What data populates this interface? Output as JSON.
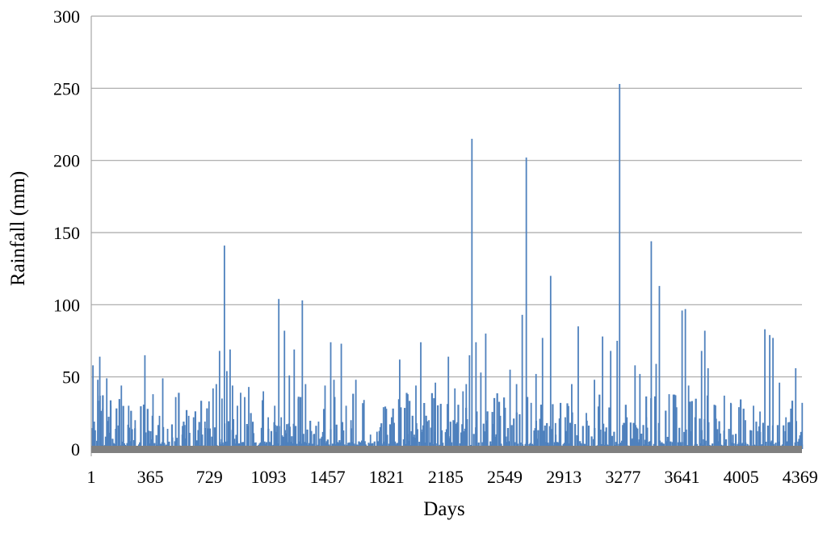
{
  "chart_data": {
    "type": "bar",
    "title": "",
    "xlabel": "Days",
    "ylabel": "Rainfall  (mm)",
    "xlim": [
      1,
      4380
    ],
    "ylim": [
      0,
      300
    ],
    "yticks": [
      0,
      50,
      100,
      150,
      200,
      250,
      300
    ],
    "xticks": [
      1,
      365,
      729,
      1093,
      1457,
      1821,
      2185,
      2549,
      2913,
      3277,
      3641,
      4005,
      4369
    ],
    "grid": true,
    "legend": "none",
    "bar_color": "#4f81bd",
    "baseline_color": "#808080",
    "grid_color": "#a6a6a6",
    "series": [
      {
        "values_note_free": true,
        "points": [
          [
            10,
            58
          ],
          [
            18,
            19
          ],
          [
            40,
            48
          ],
          [
            52,
            64
          ],
          [
            70,
            28
          ],
          [
            95,
            49
          ],
          [
            120,
            30
          ],
          [
            150,
            14
          ],
          [
            185,
            44
          ],
          [
            230,
            30
          ],
          [
            270,
            20
          ],
          [
            305,
            26
          ],
          [
            330,
            65
          ],
          [
            350,
            12
          ],
          [
            380,
            38
          ],
          [
            420,
            23
          ],
          [
            440,
            49
          ],
          [
            470,
            14
          ],
          [
            500,
            8
          ],
          [
            520,
            36
          ],
          [
            560,
            10
          ],
          [
            600,
            23
          ],
          [
            630,
            22
          ],
          [
            650,
            6
          ],
          [
            700,
            19
          ],
          [
            725,
            33
          ],
          [
            750,
            42
          ],
          [
            770,
            45
          ],
          [
            790,
            68
          ],
          [
            805,
            35
          ],
          [
            820,
            141
          ],
          [
            835,
            54
          ],
          [
            855,
            69
          ],
          [
            870,
            44
          ],
          [
            900,
            30
          ],
          [
            920,
            39
          ],
          [
            945,
            36
          ],
          [
            970,
            43
          ],
          [
            1000,
            11
          ],
          [
            1060,
            40
          ],
          [
            1090,
            22
          ],
          [
            1130,
            30
          ],
          [
            1155,
            104
          ],
          [
            1170,
            22
          ],
          [
            1190,
            82
          ],
          [
            1220,
            51
          ],
          [
            1250,
            69
          ],
          [
            1275,
            35
          ],
          [
            1300,
            103
          ],
          [
            1320,
            45
          ],
          [
            1370,
            10
          ],
          [
            1400,
            19
          ],
          [
            1440,
            44
          ],
          [
            1475,
            74
          ],
          [
            1495,
            48
          ],
          [
            1540,
            73
          ],
          [
            1570,
            30
          ],
          [
            1600,
            20
          ],
          [
            1630,
            48
          ],
          [
            1680,
            34
          ],
          [
            1720,
            10
          ],
          [
            1760,
            12
          ],
          [
            1800,
            29
          ],
          [
            1850,
            22
          ],
          [
            1900,
            62
          ],
          [
            1950,
            38
          ],
          [
            1990,
            10
          ],
          [
            2000,
            44
          ],
          [
            2030,
            74
          ],
          [
            2080,
            20
          ],
          [
            2120,
            46
          ],
          [
            2160,
            13
          ],
          [
            2200,
            64
          ],
          [
            2240,
            42
          ],
          [
            2290,
            40
          ],
          [
            2310,
            45
          ],
          [
            2330,
            65
          ],
          [
            2345,
            215
          ],
          [
            2370,
            74
          ],
          [
            2400,
            53
          ],
          [
            2430,
            80
          ],
          [
            2470,
            10
          ],
          [
            2520,
            23
          ],
          [
            2580,
            55
          ],
          [
            2620,
            45
          ],
          [
            2655,
            93
          ],
          [
            2680,
            202
          ],
          [
            2710,
            32
          ],
          [
            2740,
            52
          ],
          [
            2780,
            77
          ],
          [
            2830,
            120
          ],
          [
            2860,
            18
          ],
          [
            2920,
            22
          ],
          [
            2960,
            45
          ],
          [
            3000,
            85
          ],
          [
            3050,
            25
          ],
          [
            3100,
            48
          ],
          [
            3150,
            78
          ],
          [
            3200,
            68
          ],
          [
            3240,
            75
          ],
          [
            3255,
            253
          ],
          [
            3300,
            22
          ],
          [
            3350,
            58
          ],
          [
            3380,
            52
          ],
          [
            3420,
            22
          ],
          [
            3450,
            144
          ],
          [
            3480,
            59
          ],
          [
            3500,
            113
          ],
          [
            3560,
            38
          ],
          [
            3600,
            20
          ],
          [
            3640,
            96
          ],
          [
            3660,
            97
          ],
          [
            3680,
            44
          ],
          [
            3720,
            22
          ],
          [
            3760,
            68
          ],
          [
            3780,
            82
          ],
          [
            3800,
            56
          ],
          [
            3850,
            21
          ],
          [
            3900,
            37
          ],
          [
            3940,
            32
          ],
          [
            3990,
            29
          ],
          [
            4030,
            20
          ],
          [
            4080,
            30
          ],
          [
            4120,
            26
          ],
          [
            4150,
            83
          ],
          [
            4180,
            79
          ],
          [
            4200,
            77
          ],
          [
            4240,
            46
          ],
          [
            4280,
            22
          ],
          [
            4310,
            28
          ],
          [
            4340,
            56
          ],
          [
            4380,
            32
          ]
        ]
      }
    ]
  }
}
